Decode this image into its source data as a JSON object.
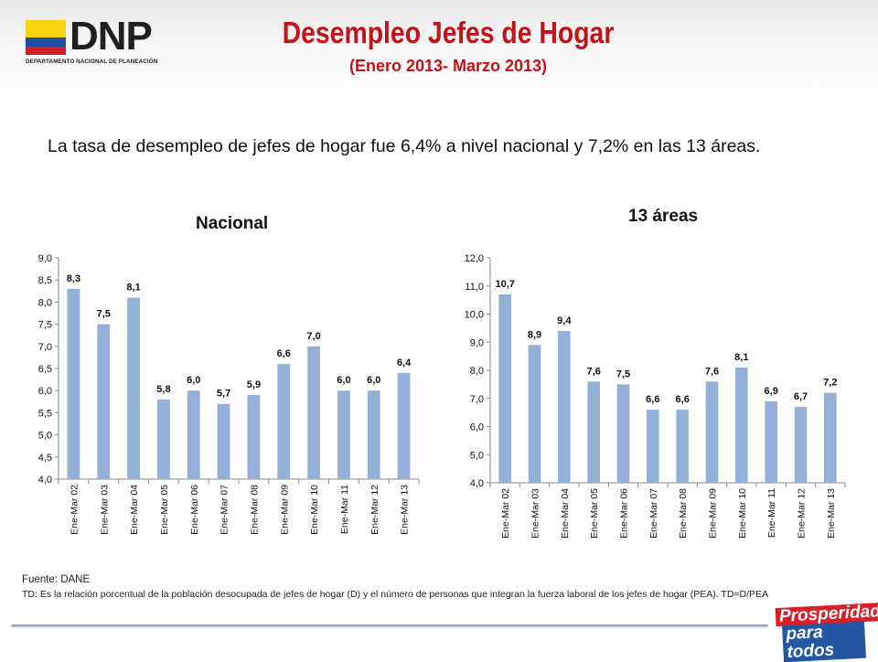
{
  "header": {
    "logo_text": "DNP",
    "logo_subtitle": "DEPARTAMENTO NACIONAL DE PLANEACIÓN",
    "title": "Desempleo Jefes de Hogar",
    "subtitle": "(Enero 2013- Marzo 2013)"
  },
  "intro": "La tasa de desempleo de jefes de hogar fue 6,4% a nivel nacional y 7,2% en las 13 áreas.",
  "chart_data": [
    {
      "type": "bar",
      "title": "Nacional",
      "categories": [
        "Ene-Mar 02",
        "Ene-Mar 03",
        "Ene-Mar 04",
        "Ene-Mar 05",
        "Ene-Mar 06",
        "Ene-Mar 07",
        "Ene-Mar 08",
        "Ene-Mar 09",
        "Ene-Mar 10",
        "Ene-Mar 11",
        "Ene-Mar 12",
        "Ene-Mar 13"
      ],
      "values": [
        8.3,
        7.5,
        8.1,
        5.8,
        6.0,
        5.7,
        5.9,
        6.6,
        7.0,
        6.0,
        6.0,
        6.4
      ],
      "value_labels": [
        "8,3",
        "7,5",
        "8,1",
        "5,8",
        "6,0",
        "5,7",
        "5,9",
        "6,6",
        "7,0",
        "6,0",
        "6,0",
        "6,4"
      ],
      "yticks": [
        "4,0",
        "4,5",
        "5,0",
        "5,5",
        "6,0",
        "6,5",
        "7,0",
        "7,5",
        "8,0",
        "8,5",
        "9,0"
      ],
      "ylim": [
        4.0,
        9.0
      ],
      "ystep": 0.5,
      "grid": false,
      "bar_color": "#95b0d8"
    },
    {
      "type": "bar",
      "title": "13 áreas",
      "categories": [
        "Ene-Mar 02",
        "Ene-Mar 03",
        "Ene-Mar 04",
        "Ene-Mar 05",
        "Ene-Mar 06",
        "Ene-Mar 07",
        "Ene-Mar 08",
        "Ene-Mar 09",
        "Ene-Mar 10",
        "Ene-Mar 11",
        "Ene-Mar 12",
        "Ene-Mar 13"
      ],
      "values": [
        10.7,
        8.9,
        9.4,
        7.6,
        7.5,
        6.6,
        6.6,
        7.6,
        8.1,
        6.9,
        6.7,
        7.2
      ],
      "value_labels": [
        "10,7",
        "8,9",
        "9,4",
        "7,6",
        "7,5",
        "6,6",
        "6,6",
        "7,6",
        "8,1",
        "6,9",
        "6,7",
        "7,2"
      ],
      "yticks": [
        "4,0",
        "5,0",
        "6,0",
        "7,0",
        "8,0",
        "9,0",
        "10,0",
        "11,0",
        "12,0"
      ],
      "ylim": [
        4.0,
        12.0
      ],
      "ystep": 1.0,
      "grid": false,
      "bar_color": "#95b0d8"
    }
  ],
  "footer": {
    "source": "Fuente: DANE",
    "note": "TD: Es la relación porcentual de la población desocupada de jefes de hogar (D) y el número de personas que integran la fuerza laboral de los jefes de hogar (PEA). TD=D/PEA"
  },
  "brand": {
    "line1": "Prosperidad",
    "line2": "para todos"
  }
}
